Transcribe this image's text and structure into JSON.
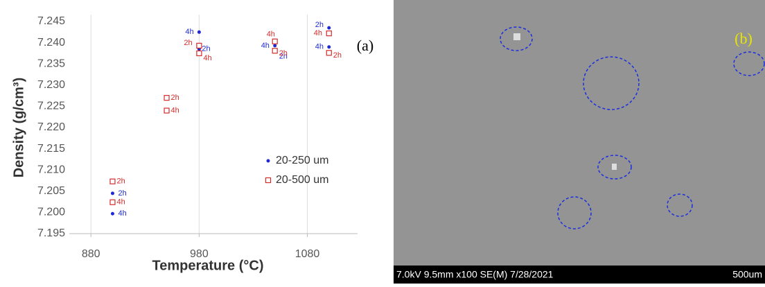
{
  "chart_data": {
    "type": "scatter",
    "x_label": "Temperature (°C)",
    "y_label": "Density (g/cm³)",
    "panel_label": "(a)",
    "xlim": [
      860,
      1120
    ],
    "xticks": [
      880,
      980,
      1080
    ],
    "ylim": [
      7.195,
      7.245
    ],
    "yticks": [
      {
        "value": 7.195,
        "label": "7.195"
      },
      {
        "value": 7.2,
        "label": "7.200"
      },
      {
        "value": 7.205,
        "label": "7.205"
      },
      {
        "value": 7.21,
        "label": "7.210"
      },
      {
        "value": 7.215,
        "label": "7.215"
      },
      {
        "value": 7.22,
        "label": "7.220"
      },
      {
        "value": 7.225,
        "label": "7.225"
      },
      {
        "value": 7.23,
        "label": "7.230"
      },
      {
        "value": 7.235,
        "label": "7.235"
      },
      {
        "value": 7.24,
        "label": "7.240"
      },
      {
        "value": 7.245,
        "label": "7.245"
      }
    ],
    "grid": "x",
    "series": [
      {
        "name": "20-250 um",
        "color": "#1f2ad6",
        "marker": "dot",
        "x": [
          900,
          900,
          980,
          980,
          1050,
          1050,
          1100,
          1100
        ],
        "values": [
          7.1997,
          7.2045,
          7.2425,
          7.2385,
          7.2393,
          7.238,
          7.2435,
          7.239
        ],
        "labels": [
          "4h",
          "2h",
          "4h",
          "2h",
          "4h",
          "2h",
          "2h",
          "4h"
        ]
      },
      {
        "name": "20-500 um",
        "color": "#d42a2a",
        "marker": "square",
        "x": [
          900,
          900,
          950,
          950,
          980,
          980,
          1050,
          1050,
          1100,
          1100
        ],
        "values": [
          7.2073,
          7.2024,
          7.227,
          7.224,
          7.2393,
          7.2375,
          7.2403,
          7.2381,
          7.2422,
          7.2376
        ],
        "labels": [
          "2h",
          "4h",
          "2h",
          "4h",
          "2h",
          "4h",
          "4h",
          "2h",
          "4h",
          "2h"
        ]
      }
    ]
  },
  "sem_image": {
    "panel_label": "(b)",
    "info_bar": "7.0kV 9.5mm x100 SE(M) 7/28/2021",
    "scale_bar": "500um"
  }
}
